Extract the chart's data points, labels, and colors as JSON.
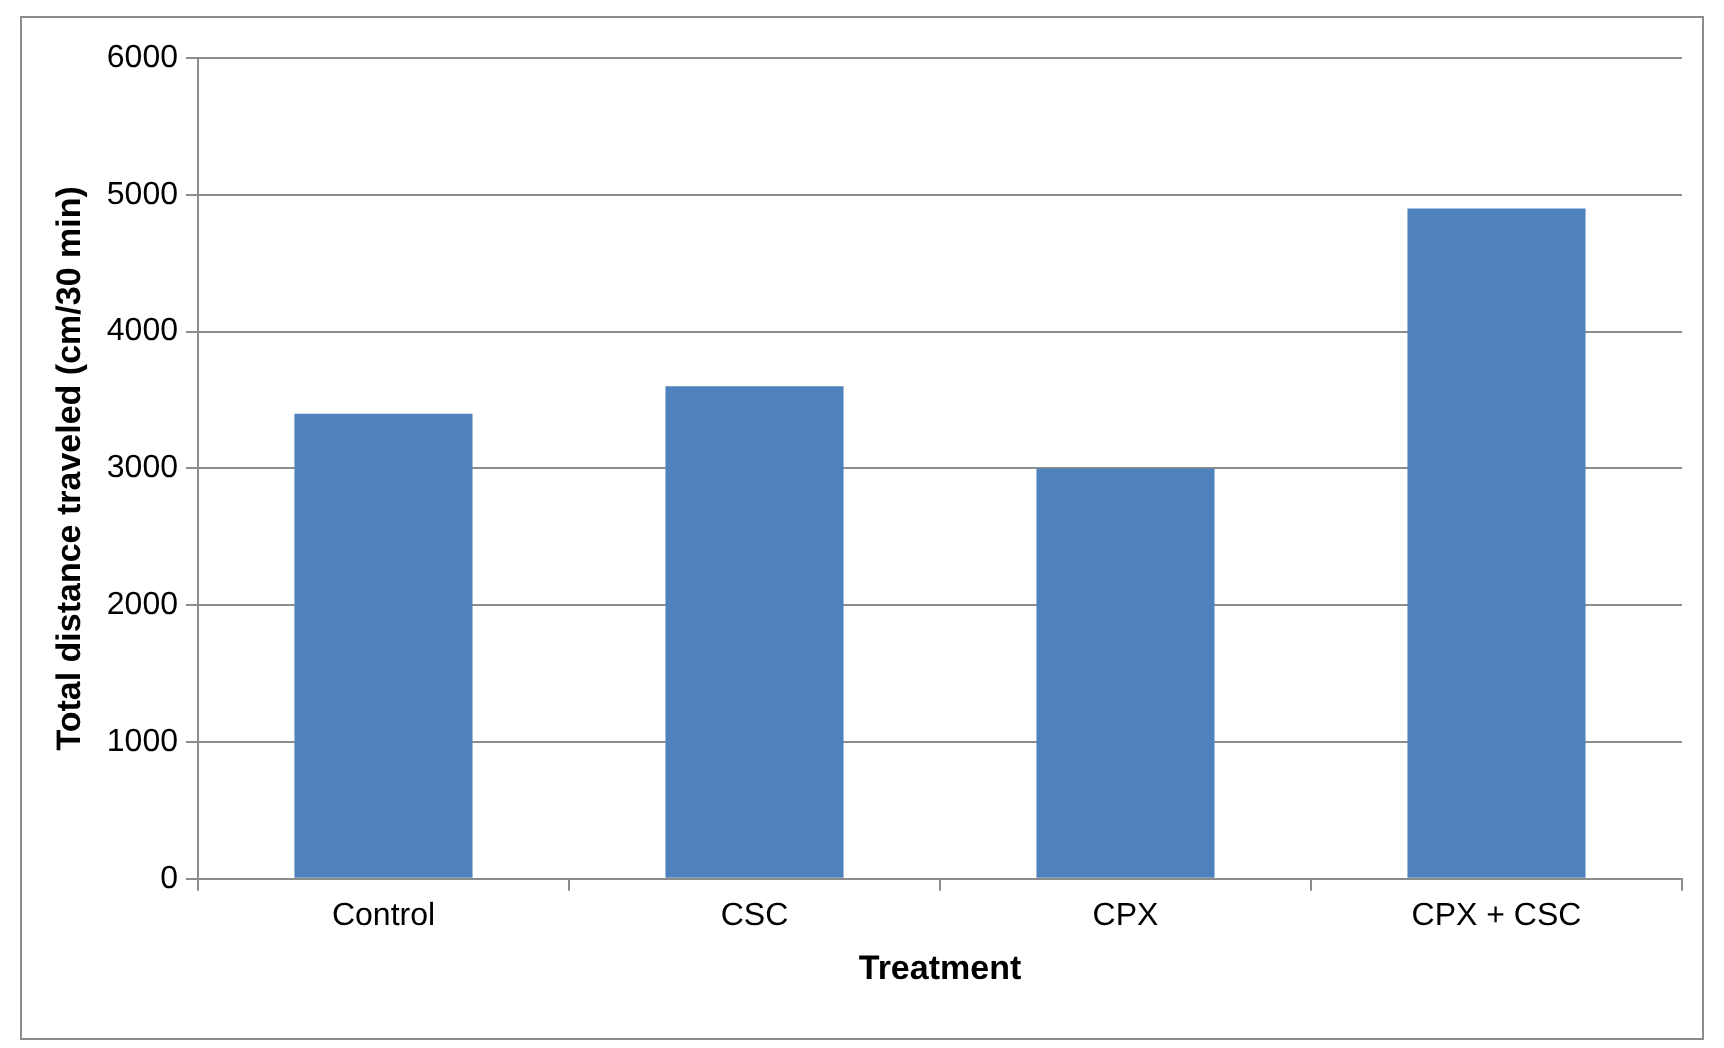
{
  "chart_data": {
    "type": "bar",
    "xlabel": "Treatment",
    "ylabel": "Total distance traveled (cm/30 min)",
    "categories": [
      "Control",
      "CSC",
      "CPX",
      "CPX + CSC"
    ],
    "values": [
      3400,
      3600,
      3000,
      4900
    ],
    "color": "#4f81bd",
    "ylim": [
      0,
      6000
    ],
    "yticks": [
      0,
      1000,
      2000,
      3000,
      4000,
      5000,
      6000
    ],
    "grid": "y",
    "legend": false
  }
}
